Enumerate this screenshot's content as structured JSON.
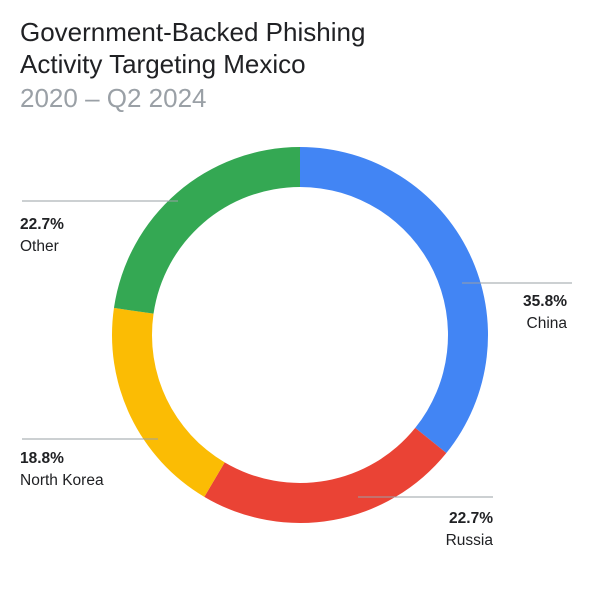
{
  "header": {
    "title_line1": "Government-Backed Phishing",
    "title_line2": "Activity Targeting Mexico",
    "subtitle": "2020 – Q2 2024"
  },
  "chart_data": {
    "type": "pie",
    "variant": "donut",
    "title": "Government-Backed Phishing Activity Targeting Mexico",
    "subtitle": "2020 – Q2 2024",
    "slices": [
      {
        "label": "China",
        "value": 35.8,
        "value_label": "35.8%",
        "color": "#4285f4"
      },
      {
        "label": "Russia",
        "value": 22.7,
        "value_label": "22.7%",
        "color": "#ea4335"
      },
      {
        "label": "North Korea",
        "value": 18.8,
        "value_label": "18.8%",
        "color": "#fbbc04"
      },
      {
        "label": "Other",
        "value": 22.7,
        "value_label": "22.7%",
        "color": "#34a853"
      }
    ],
    "start_angle": "top",
    "direction": "clockwise",
    "legend": "none"
  }
}
